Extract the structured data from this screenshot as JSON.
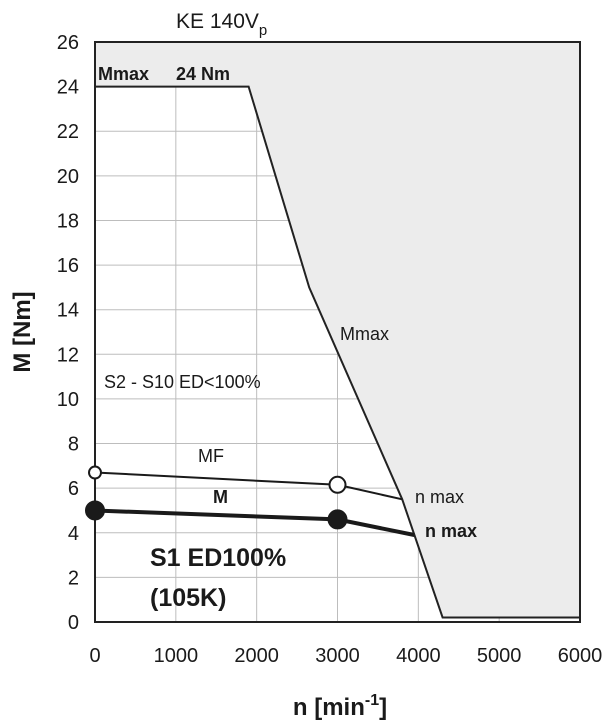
{
  "chart_data": {
    "type": "line",
    "title": "KE 140V",
    "title_subscript": "p",
    "xlabel": "n [min",
    "xlabel_superscript": "-1",
    "xlabel_suffix": "]",
    "ylabel": "M [Nm]",
    "xlim": [
      0,
      6000
    ],
    "ylim": [
      0,
      26
    ],
    "x_ticks": [
      "0",
      "1000",
      "2000",
      "3000",
      "4000",
      "5000",
      "6000"
    ],
    "y_ticks": [
      "0",
      "2",
      "4",
      "6",
      "8",
      "10",
      "12",
      "14",
      "16",
      "18",
      "20",
      "22",
      "24",
      "26"
    ],
    "grid": true,
    "envelope": {
      "name": "Mmax",
      "fill_color": "#ececec",
      "points": [
        [
          0,
          24
        ],
        [
          1900,
          24
        ],
        [
          2650,
          15
        ],
        [
          3800,
          5.5
        ],
        [
          4300,
          0.2
        ],
        [
          6000,
          0.2
        ]
      ]
    },
    "series": [
      {
        "name": "MF",
        "style": "thin",
        "points": [
          [
            0,
            6.7
          ],
          [
            3000,
            6.15
          ],
          [
            3800,
            5.5
          ]
        ],
        "markers": [
          [
            0,
            6.7
          ],
          [
            3000,
            6.15
          ]
        ],
        "marker": "open-circle",
        "end_label": "n max"
      },
      {
        "name": "M",
        "style": "thick",
        "points": [
          [
            0,
            5.0
          ],
          [
            3000,
            4.6
          ],
          [
            3950,
            3.9
          ]
        ],
        "markers": [
          [
            0,
            5.0
          ],
          [
            3000,
            4.6
          ]
        ],
        "marker": "filled-circle",
        "end_label": "n max"
      }
    ],
    "annotations": {
      "mmax_label": "Mmax",
      "mmax_value": "24 Nm",
      "mmax_curve_label": "Mmax",
      "s2_region": "S2 - S10  ED<100%",
      "s1_line1": "S1 ED100%",
      "s1_line2": "(105K)"
    }
  }
}
